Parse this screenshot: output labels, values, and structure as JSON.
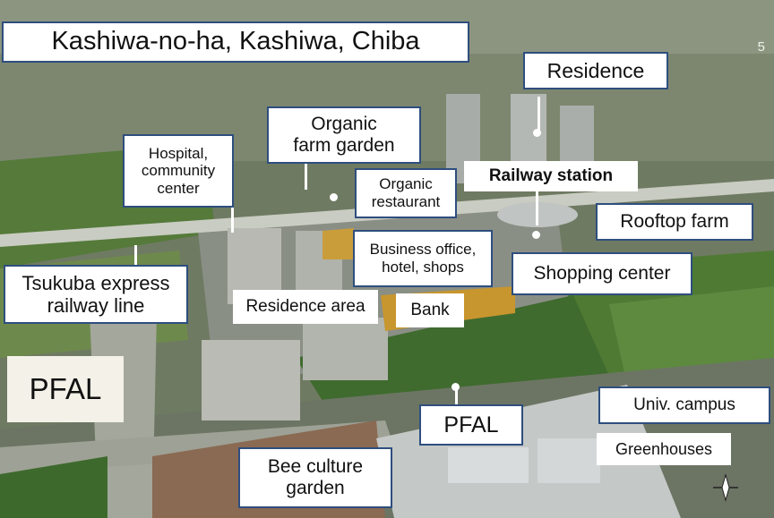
{
  "page_number": "5",
  "labels": {
    "title": "Kashiwa-no-ha, Kashiwa, Chiba",
    "residence": "Residence",
    "organic_farm_garden_l1": "Organic",
    "organic_farm_garden_l2": "farm garden",
    "hospital_l1": "Hospital,",
    "hospital_l2": "community",
    "hospital_l3": "center",
    "organic_restaurant_l1": "Organic",
    "organic_restaurant_l2": "restaurant",
    "railway_station": "Railway station",
    "rooftop_farm": "Rooftop farm",
    "business_l1": "Business office,",
    "business_l2": "hotel, shops",
    "shopping_center": "Shopping center",
    "tsukuba_l1": "Tsukuba express",
    "tsukuba_l2": "railway line",
    "residence_area": "Residence area",
    "bank": "Bank",
    "pfal_left": "PFAL",
    "pfal_center": "PFAL",
    "univ_campus": "Univ. campus",
    "greenhouses": "Greenhouses",
    "bee_l1": "Bee culture",
    "bee_l2": "garden"
  },
  "icons": {
    "compass": "north-arrow-icon"
  },
  "colors": {
    "label_border": "#2e4e7e",
    "label_fill": "#ffffff"
  }
}
